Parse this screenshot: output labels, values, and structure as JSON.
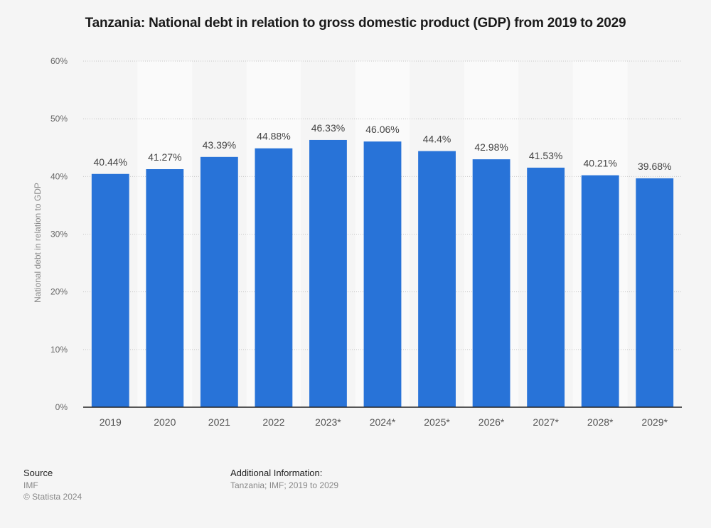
{
  "chart_data": {
    "type": "bar",
    "title": "Tanzania: National debt in relation to gross domestic product (GDP) from 2019 to 2029",
    "xlabel": "",
    "ylabel": "National debt in relation to GDP",
    "categories": [
      "2019",
      "2020",
      "2021",
      "2022",
      "2023*",
      "2024*",
      "2025*",
      "2026*",
      "2027*",
      "2028*",
      "2029*"
    ],
    "values": [
      40.44,
      41.27,
      43.39,
      44.88,
      46.33,
      46.06,
      44.4,
      42.98,
      41.53,
      40.21,
      39.68
    ],
    "data_labels": [
      "40.44%",
      "41.27%",
      "43.39%",
      "44.88%",
      "46.33%",
      "46.06%",
      "44.4%",
      "42.98%",
      "41.53%",
      "40.21%",
      "39.68%"
    ],
    "ylim": [
      0,
      60
    ],
    "yticks": [
      0,
      10,
      20,
      30,
      40,
      50,
      60
    ],
    "ytick_labels": [
      "0%",
      "10%",
      "20%",
      "30%",
      "40%",
      "50%",
      "60%"
    ],
    "grid": true,
    "legend": "none",
    "bar_color": "#2873d8"
  },
  "footer": {
    "source_heading": "Source",
    "source": "IMF",
    "copyright": "© Statista 2024",
    "additional_heading": "Additional Information:",
    "additional": "Tanzania; IMF; 2019 to 2029"
  }
}
